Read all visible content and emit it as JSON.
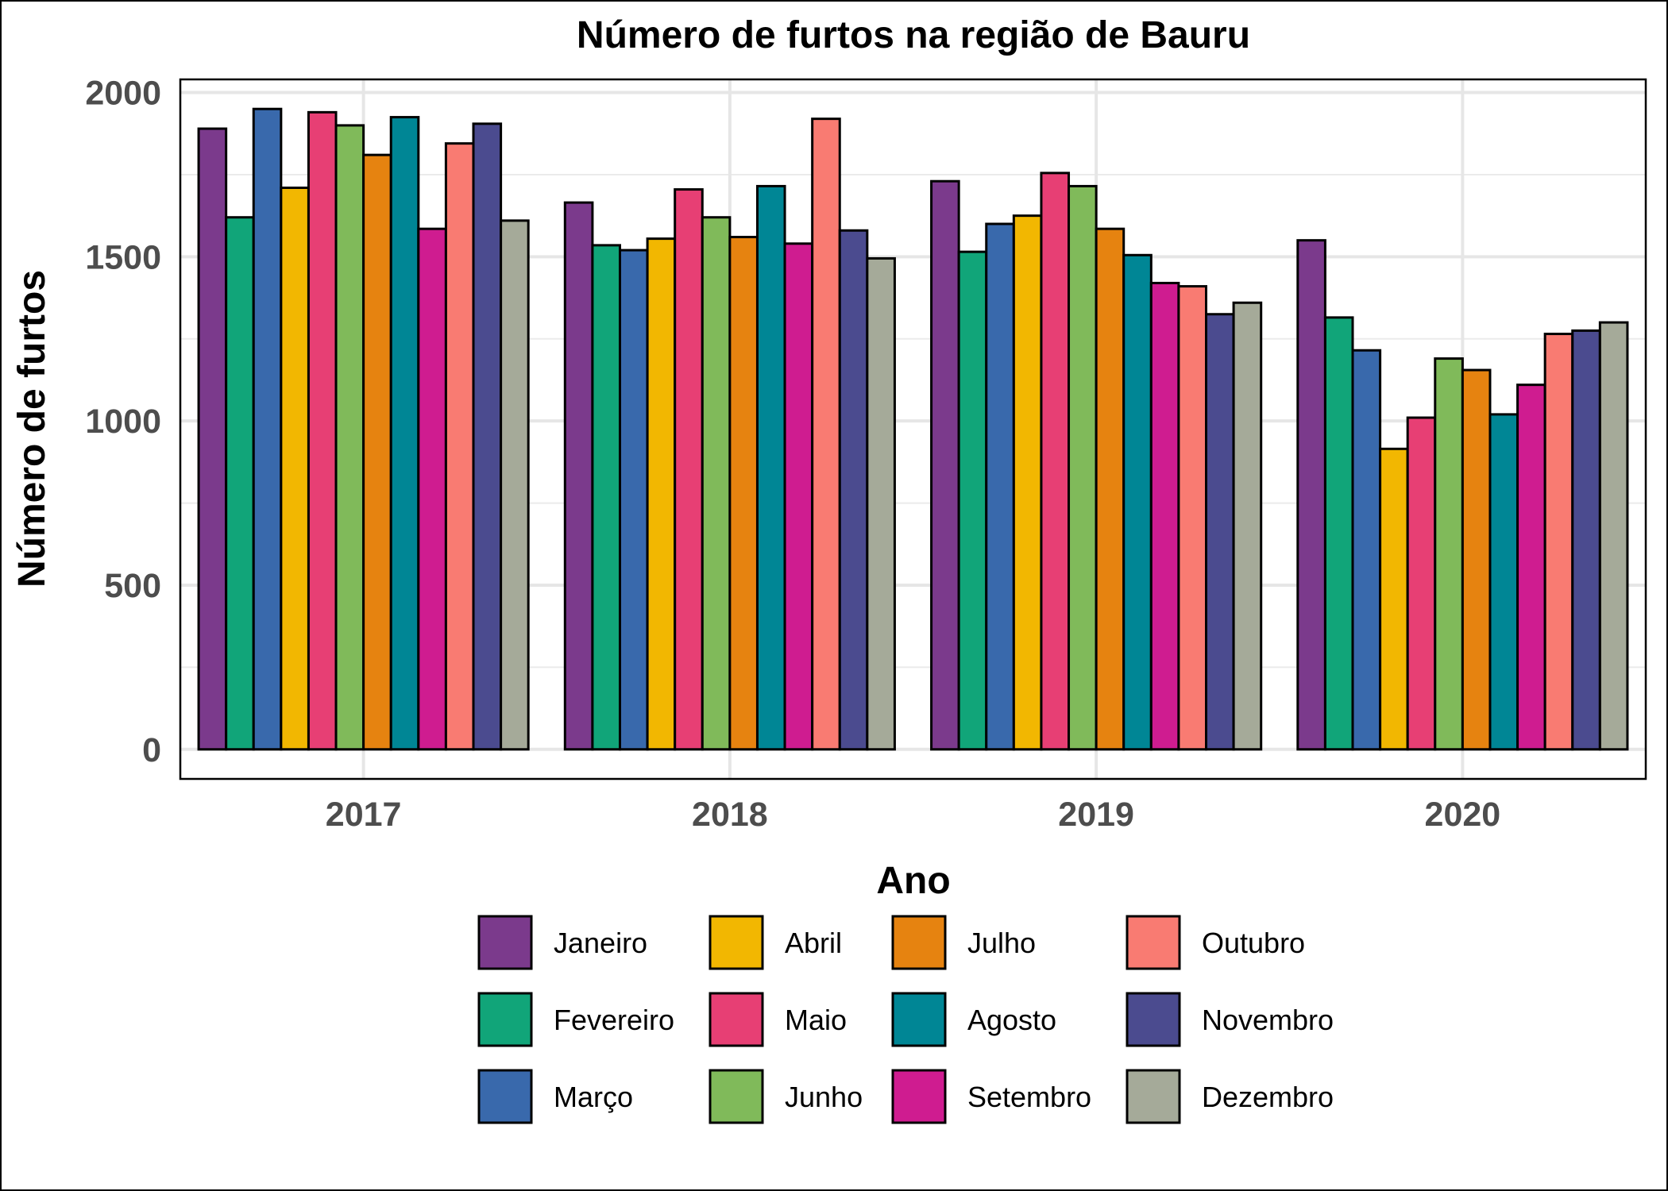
{
  "chart_data": {
    "type": "bar",
    "title": "Número de furtos na região de Bauru",
    "xlabel": "Ano",
    "ylabel": "Número de furtos",
    "categories": [
      "2017",
      "2018",
      "2019",
      "2020"
    ],
    "ylim": [
      -90,
      2040
    ],
    "yticks": [
      0,
      500,
      1000,
      1500,
      2000
    ],
    "grid": true,
    "legend_position": "bottom",
    "series": [
      {
        "name": "Janeiro",
        "color": "#7b3a8c",
        "values": [
          1890,
          1665,
          1730,
          1550
        ]
      },
      {
        "name": "Fevereiro",
        "color": "#11a579",
        "values": [
          1620,
          1535,
          1515,
          1315
        ]
      },
      {
        "name": "Março",
        "color": "#3969ac",
        "values": [
          1950,
          1520,
          1600,
          1215
        ]
      },
      {
        "name": "Abril",
        "color": "#f2b701",
        "values": [
          1710,
          1555,
          1625,
          915
        ]
      },
      {
        "name": "Maio",
        "color": "#e73f74",
        "values": [
          1940,
          1705,
          1755,
          1010
        ]
      },
      {
        "name": "Junho",
        "color": "#80ba5a",
        "values": [
          1900,
          1620,
          1715,
          1190
        ]
      },
      {
        "name": "Julho",
        "color": "#e68310",
        "values": [
          1810,
          1560,
          1585,
          1155
        ]
      },
      {
        "name": "Agosto",
        "color": "#008695",
        "values": [
          1925,
          1715,
          1505,
          1020
        ]
      },
      {
        "name": "Setembro",
        "color": "#cf1c90",
        "values": [
          1585,
          1540,
          1420,
          1110
        ]
      },
      {
        "name": "Outubro",
        "color": "#f97b72",
        "values": [
          1845,
          1920,
          1410,
          1265
        ]
      },
      {
        "name": "Novembro",
        "color": "#4b4b8f",
        "values": [
          1905,
          1580,
          1325,
          1275
        ]
      },
      {
        "name": "Dezembro",
        "color": "#a5aa99",
        "values": [
          1610,
          1495,
          1360,
          1300
        ]
      }
    ]
  }
}
